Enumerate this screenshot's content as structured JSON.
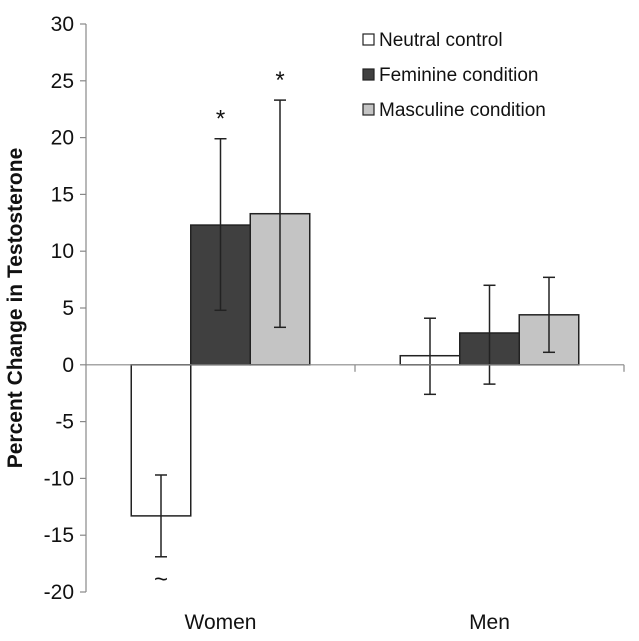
{
  "chart_data": {
    "type": "bar",
    "title": "",
    "xlabel": "",
    "ylabel": "Percent Change in Testosterone",
    "ylim": [
      -20,
      30
    ],
    "yticks": [
      30,
      25,
      20,
      15,
      10,
      5,
      0,
      -5,
      -10,
      -15,
      -20
    ],
    "grid": false,
    "legend_position": "top-right",
    "categories": [
      "Women",
      "Men"
    ],
    "series": [
      {
        "name": "Neutral control",
        "color": "#ffffff",
        "values": [
          -13.3,
          0.8
        ],
        "error_low": [
          -16.9,
          -2.6
        ],
        "error_high": [
          -9.7,
          4.1
        ]
      },
      {
        "name": "Feminine condition",
        "color": "#404040",
        "values": [
          12.3,
          2.8
        ],
        "error_low": [
          4.8,
          -1.7
        ],
        "error_high": [
          19.9,
          7.0
        ]
      },
      {
        "name": "Masculine condition",
        "color": "#c4c4c4",
        "values": [
          13.3,
          4.4
        ],
        "error_low": [
          3.3,
          1.1
        ],
        "error_high": [
          23.3,
          7.7
        ]
      }
    ],
    "annotations": [
      {
        "text": "*",
        "category": "Women",
        "series": "Feminine condition",
        "position": "above"
      },
      {
        "text": "*",
        "category": "Women",
        "series": "Masculine condition",
        "position": "above"
      },
      {
        "text": "~",
        "category": "Women",
        "series": "Neutral control",
        "position": "below"
      }
    ]
  }
}
